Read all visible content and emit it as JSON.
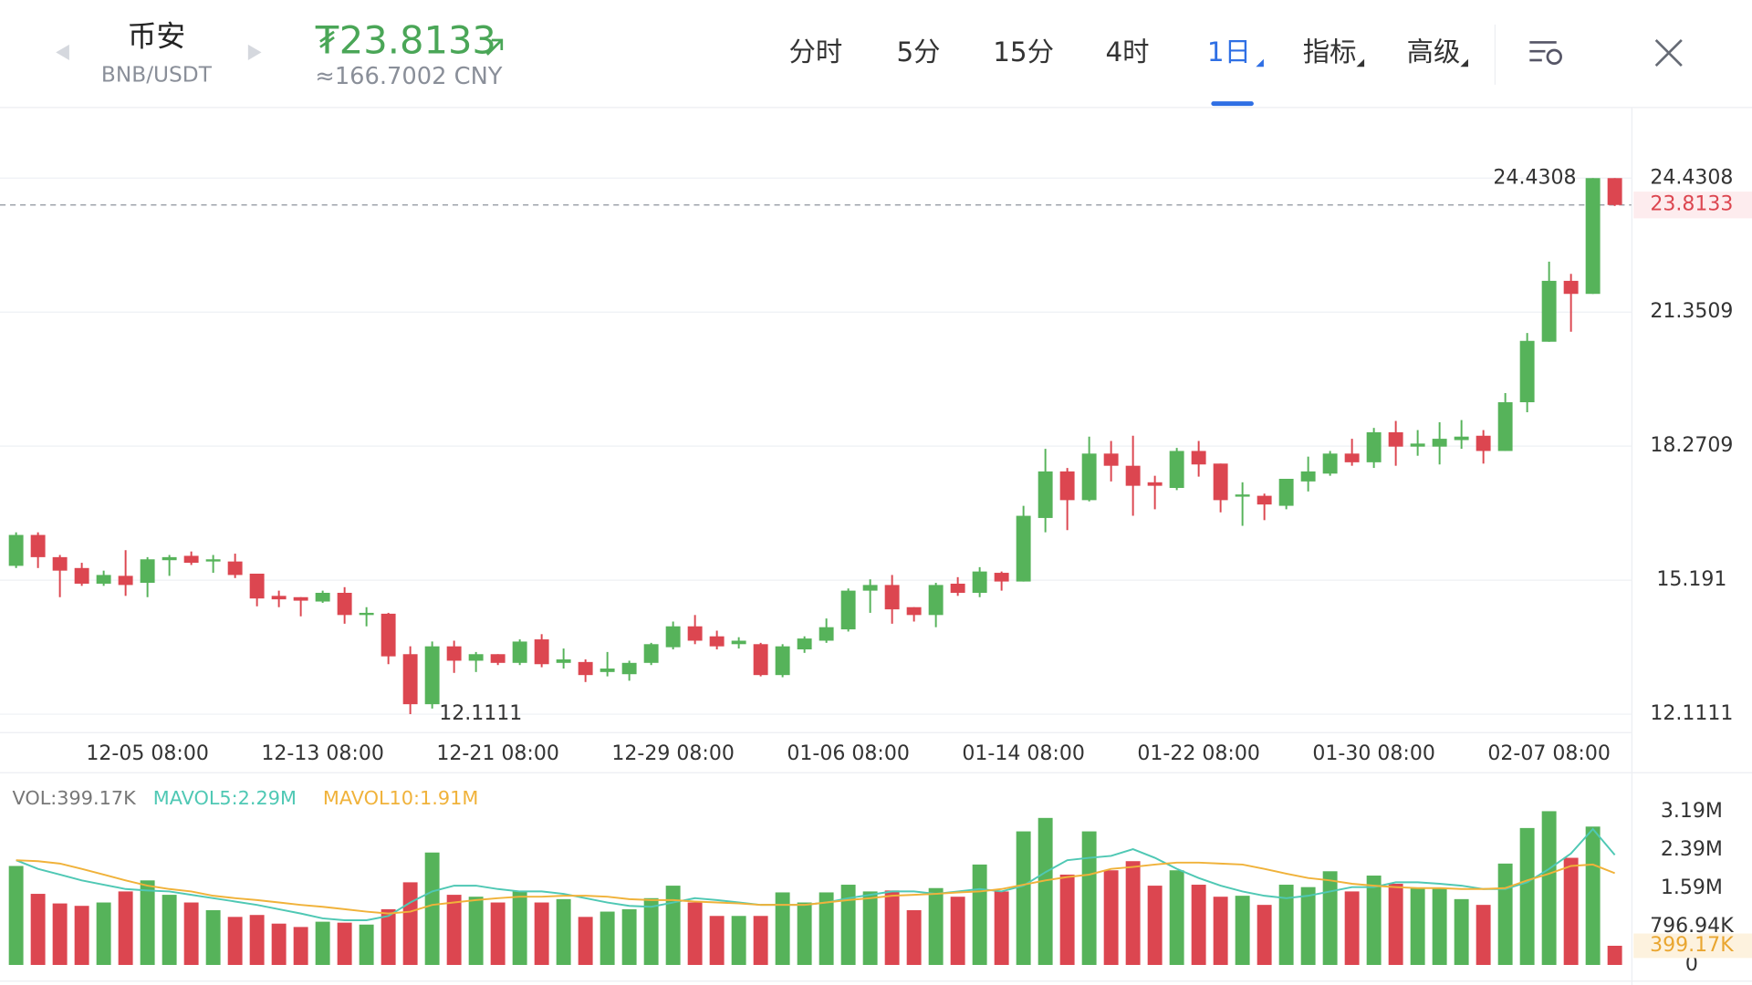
{
  "header": {
    "name": "币安",
    "pair": "BNB/USDT",
    "price": "₮23.8133",
    "cny": "≈166.7002 CNY",
    "tabs": [
      "分时",
      "5分",
      "15分",
      "4时",
      "1日",
      "指标",
      "高级"
    ],
    "selected_tab_index": 4
  },
  "chart_data": [
    {
      "type": "candlestick",
      "up_color": "#56b35a",
      "down_color": "#dc4650",
      "grid": true,
      "ylim": [
        11.7,
        26.04
      ],
      "yticks": [
        24.4308,
        21.3509,
        18.2709,
        15.191,
        12.1111
      ],
      "current_price": 23.8133,
      "high_label": 24.4308,
      "low_label": 12.1111,
      "categories": [
        null,
        null,
        null,
        null,
        null,
        null,
        "12-05 08:00",
        null,
        null,
        null,
        null,
        null,
        null,
        null,
        "12-13 08:00",
        null,
        null,
        null,
        null,
        null,
        null,
        null,
        "12-21 08:00",
        null,
        null,
        null,
        null,
        null,
        null,
        null,
        "12-29 08:00",
        null,
        null,
        null,
        null,
        null,
        null,
        null,
        "01-06 08:00",
        null,
        null,
        null,
        null,
        null,
        null,
        null,
        "01-14 08:00",
        null,
        null,
        null,
        null,
        null,
        null,
        null,
        "01-22 08:00",
        null,
        null,
        null,
        null,
        null,
        null,
        null,
        "01-30 08:00",
        null,
        null,
        null,
        null,
        null,
        null,
        null,
        "02-07 08:00",
        null,
        null,
        null
      ],
      "open": [
        15.52,
        16.23,
        15.72,
        15.47,
        15.11,
        15.29,
        15.13,
        15.65,
        15.75,
        15.62,
        15.62,
        15.34,
        14.83,
        14.8,
        14.7,
        14.9,
        14.39,
        14.42,
        13.49,
        12.34,
        13.67,
        13.34,
        13.49,
        13.29,
        13.83,
        13.29,
        13.31,
        13.08,
        13.03,
        13.29,
        13.65,
        14.13,
        13.9,
        13.72,
        13.72,
        13.01,
        13.6,
        13.8,
        14.06,
        14.95,
        15.08,
        14.57,
        14.39,
        15.11,
        14.9,
        15.36,
        15.16,
        16.62,
        17.69,
        17.03,
        18.1,
        17.82,
        17.44,
        17.31,
        18.16,
        17.87,
        17.11,
        17.13,
        16.9,
        17.46,
        17.64,
        18.1,
        17.9,
        18.59,
        18.26,
        18.26,
        18.41,
        18.51,
        18.16,
        19.28,
        20.67,
        22.07,
        21.77,
        24.4308
      ],
      "high": [
        16.29,
        16.29,
        15.77,
        15.59,
        15.41,
        15.88,
        15.72,
        15.77,
        15.85,
        15.77,
        15.8,
        15.34,
        14.95,
        14.8,
        14.95,
        15.03,
        14.57,
        14.44,
        13.67,
        13.78,
        13.8,
        13.54,
        13.49,
        13.83,
        13.95,
        13.62,
        13.37,
        13.54,
        13.34,
        13.75,
        14.24,
        14.39,
        14.03,
        13.88,
        13.75,
        13.72,
        13.9,
        14.31,
        15.0,
        15.21,
        15.31,
        14.57,
        15.13,
        15.26,
        15.49,
        15.39,
        16.9,
        18.21,
        17.77,
        18.49,
        18.39,
        18.51,
        17.59,
        18.23,
        18.39,
        17.87,
        17.44,
        17.18,
        17.52,
        18.03,
        18.16,
        18.44,
        18.69,
        18.85,
        18.64,
        18.82,
        18.87,
        18.64,
        19.49,
        20.87,
        22.51,
        22.23,
        24.4308,
        24.4308
      ],
      "low": [
        15.47,
        15.47,
        14.8,
        15.06,
        15.06,
        14.83,
        14.8,
        15.29,
        15.54,
        15.36,
        15.24,
        14.59,
        14.57,
        14.36,
        14.67,
        14.19,
        14.13,
        13.26,
        12.1111,
        12.24,
        13.06,
        13.08,
        13.24,
        13.24,
        13.19,
        13.16,
        12.85,
        12.98,
        12.88,
        13.24,
        13.6,
        13.72,
        13.6,
        13.62,
        12.98,
        12.96,
        13.52,
        13.75,
        14.01,
        14.44,
        14.19,
        14.24,
        14.11,
        14.83,
        14.8,
        14.95,
        15.16,
        16.29,
        16.34,
        17.0,
        17.46,
        16.67,
        16.82,
        17.26,
        17.57,
        16.75,
        16.44,
        16.57,
        16.82,
        17.23,
        17.59,
        17.82,
        17.77,
        17.82,
        18.05,
        17.85,
        18.21,
        17.87,
        18.16,
        19.05,
        20.67,
        20.9,
        21.77,
        23.79
      ],
      "close": [
        16.23,
        15.72,
        15.41,
        15.11,
        15.31,
        15.08,
        15.67,
        15.72,
        15.59,
        15.67,
        15.31,
        14.77,
        14.75,
        14.72,
        14.9,
        14.39,
        14.44,
        13.44,
        12.34,
        13.67,
        13.34,
        13.49,
        13.29,
        13.78,
        13.26,
        13.37,
        13.01,
        13.16,
        13.29,
        13.72,
        14.13,
        13.8,
        13.67,
        13.8,
        13.01,
        13.67,
        13.85,
        14.11,
        14.95,
        15.08,
        14.52,
        14.39,
        15.08,
        14.9,
        15.39,
        15.16,
        16.67,
        17.69,
        17.03,
        18.1,
        17.82,
        17.36,
        17.36,
        18.16,
        17.85,
        17.03,
        17.16,
        16.93,
        17.52,
        17.69,
        18.1,
        17.9,
        18.59,
        18.26,
        18.33,
        18.44,
        18.49,
        18.16,
        19.28,
        20.69,
        22.07,
        21.77,
        24.4308,
        23.8133
      ]
    },
    {
      "type": "bar",
      "title": "VOL:399.17K",
      "ylim": [
        0,
        3.85
      ],
      "yticks": [
        {
          "value": 3.19,
          "label": "3.19M"
        },
        {
          "value": 2.39,
          "label": "2.39M"
        },
        {
          "value": 1.59,
          "label": "1.59M"
        },
        {
          "value": 0.79694,
          "label": "796.94K"
        },
        0
      ],
      "current_volume": {
        "value": 0.39917,
        "label": "399.17K"
      },
      "values": [
        2.06,
        1.48,
        1.28,
        1.23,
        1.3,
        1.53,
        1.76,
        1.46,
        1.3,
        1.14,
        1.0,
        1.04,
        0.86,
        0.79,
        0.9,
        0.88,
        0.84,
        1.16,
        1.72,
        2.34,
        1.46,
        1.42,
        1.3,
        1.53,
        1.3,
        1.37,
        1.0,
        1.11,
        1.16,
        1.39,
        1.65,
        1.3,
        1.02,
        1.02,
        1.02,
        1.51,
        1.3,
        1.51,
        1.67,
        1.53,
        1.55,
        1.14,
        1.6,
        1.42,
        2.09,
        1.53,
        2.78,
        3.06,
        1.88,
        2.78,
        1.97,
        2.16,
        1.65,
        1.97,
        1.67,
        1.42,
        1.44,
        1.25,
        1.67,
        1.62,
        1.95,
        1.53,
        1.86,
        1.69,
        1.6,
        1.6,
        1.37,
        1.25,
        2.11,
        2.85,
        3.2,
        2.23,
        2.88,
        0.39917
      ],
      "series": [
        {
          "name": "MAVOL5:2.29M",
          "color": "#4fc8b4",
          "values": [
            2.18,
            2.0,
            1.88,
            1.76,
            1.67,
            1.58,
            1.55,
            1.53,
            1.46,
            1.39,
            1.32,
            1.25,
            1.16,
            1.07,
            0.97,
            0.93,
            0.93,
            1.02,
            1.3,
            1.53,
            1.65,
            1.65,
            1.58,
            1.53,
            1.53,
            1.48,
            1.39,
            1.3,
            1.23,
            1.21,
            1.3,
            1.39,
            1.35,
            1.3,
            1.25,
            1.25,
            1.25,
            1.3,
            1.39,
            1.46,
            1.53,
            1.53,
            1.48,
            1.53,
            1.58,
            1.53,
            1.65,
            1.93,
            2.18,
            2.23,
            2.27,
            2.41,
            2.23,
            2.0,
            1.81,
            1.65,
            1.53,
            1.44,
            1.39,
            1.44,
            1.53,
            1.62,
            1.62,
            1.72,
            1.72,
            1.69,
            1.65,
            1.58,
            1.58,
            1.72,
            2.0,
            2.32,
            2.83,
            2.29
          ]
        },
        {
          "name": "MAVOL10:1.91M",
          "color": "#f0b23a",
          "values": [
            2.18,
            2.16,
            2.11,
            2.0,
            1.88,
            1.76,
            1.65,
            1.58,
            1.53,
            1.44,
            1.39,
            1.35,
            1.3,
            1.25,
            1.21,
            1.16,
            1.11,
            1.07,
            1.11,
            1.25,
            1.3,
            1.35,
            1.39,
            1.42,
            1.42,
            1.44,
            1.44,
            1.42,
            1.37,
            1.35,
            1.35,
            1.32,
            1.3,
            1.28,
            1.25,
            1.25,
            1.25,
            1.3,
            1.35,
            1.39,
            1.44,
            1.46,
            1.48,
            1.51,
            1.53,
            1.58,
            1.67,
            1.76,
            1.83,
            1.88,
            2.0,
            2.04,
            2.09,
            2.13,
            2.13,
            2.11,
            2.09,
            2.0,
            1.9,
            1.81,
            1.76,
            1.69,
            1.65,
            1.62,
            1.6,
            1.6,
            1.58,
            1.58,
            1.6,
            1.76,
            1.9,
            2.06,
            2.09,
            1.91
          ]
        }
      ]
    }
  ]
}
